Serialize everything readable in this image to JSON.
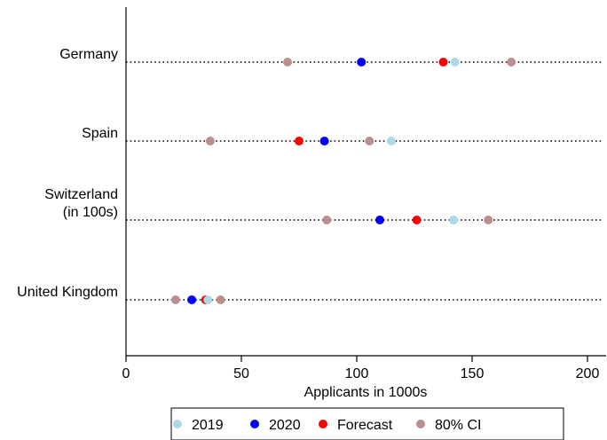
{
  "chart_data": {
    "type": "scatter",
    "title": "",
    "xlabel": "Applicants in 1000s",
    "ylabel": "",
    "xlim": [
      0,
      205
    ],
    "xticks": [
      0,
      50,
      100,
      150,
      200
    ],
    "categories": [
      "Germany",
      "Spain",
      "Switzerland\n(in 100s)",
      "United Kingdom"
    ],
    "grid": "dotted horizontal line per category",
    "legend_position": "bottom",
    "series": [
      {
        "name": "2019",
        "color": "#add8e6",
        "values": [
          142.5,
          115,
          142,
          35.5
        ]
      },
      {
        "name": "2020",
        "color": "#0000ff",
        "values": [
          102,
          86,
          110,
          28.5
        ]
      },
      {
        "name": "Forecast",
        "color": "#ff0000",
        "values": [
          137.5,
          75,
          126,
          34.5
        ]
      },
      {
        "name": "80% CI",
        "color": "#bc8f8f",
        "values": [
          [
            70,
            167
          ],
          [
            36.5,
            105.5
          ],
          [
            87,
            157
          ],
          [
            21.5,
            41
          ]
        ]
      }
    ]
  }
}
